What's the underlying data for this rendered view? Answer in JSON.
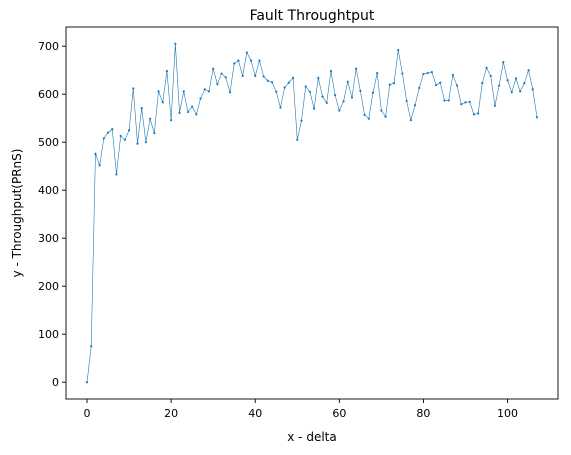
{
  "chart_data": {
    "type": "line",
    "title": "Fault Throughtput",
    "xlabel": "x - delta",
    "ylabel": "y - Throughput(PRnS)",
    "xlim": [
      -5,
      112
    ],
    "ylim": [
      -35,
      740
    ],
    "xticks": [
      0,
      20,
      40,
      60,
      80,
      100
    ],
    "yticks": [
      0,
      100,
      200,
      300,
      400,
      500,
      600,
      700
    ],
    "grid": false,
    "series": [
      {
        "color": "#1f77b4",
        "marker": "dot",
        "x": [
          0,
          1,
          2,
          3,
          4,
          5,
          6,
          7,
          8,
          9,
          10,
          11,
          12,
          13,
          14,
          15,
          16,
          17,
          18,
          19,
          20,
          21,
          22,
          23,
          24,
          25,
          26,
          27,
          28,
          29,
          30,
          31,
          32,
          33,
          34,
          35,
          36,
          37,
          38,
          39,
          40,
          41,
          42,
          43,
          44,
          45,
          46,
          47,
          48,
          49,
          50,
          51,
          52,
          53,
          54,
          55,
          56,
          57,
          58,
          59,
          60,
          61,
          62,
          63,
          64,
          65,
          66,
          67,
          68,
          69,
          70,
          71,
          72,
          73,
          74,
          75,
          76,
          77,
          78,
          79,
          80,
          81,
          82,
          83,
          84,
          85,
          86,
          87,
          88,
          89,
          90,
          91,
          92,
          93,
          94,
          95,
          96,
          97,
          98,
          99,
          100,
          101,
          102,
          103,
          104,
          105,
          106,
          107
        ],
        "y": [
          0,
          75,
          476,
          452,
          508,
          520,
          527,
          433,
          513,
          505,
          525,
          612,
          497,
          571,
          500,
          549,
          519,
          606,
          583,
          648,
          546,
          705,
          561,
          606,
          563,
          574,
          558,
          591,
          610,
          606,
          653,
          621,
          643,
          635,
          604,
          664,
          670,
          638,
          687,
          670,
          638,
          670,
          637,
          628,
          625,
          605,
          572,
          614,
          624,
          634,
          505,
          545,
          616,
          605,
          570,
          634,
          595,
          582,
          648,
          598,
          566,
          585,
          626,
          593,
          653,
          607,
          557,
          549,
          603,
          644,
          566,
          553,
          620,
          623,
          692,
          643,
          586,
          546,
          577,
          613,
          642,
          644,
          646,
          619,
          624,
          587,
          587,
          640,
          618,
          579,
          583,
          584,
          558,
          560,
          623,
          655,
          638,
          576,
          618,
          667,
          629,
          604,
          633,
          606,
          623,
          650,
          610,
          552
        ]
      }
    ]
  }
}
